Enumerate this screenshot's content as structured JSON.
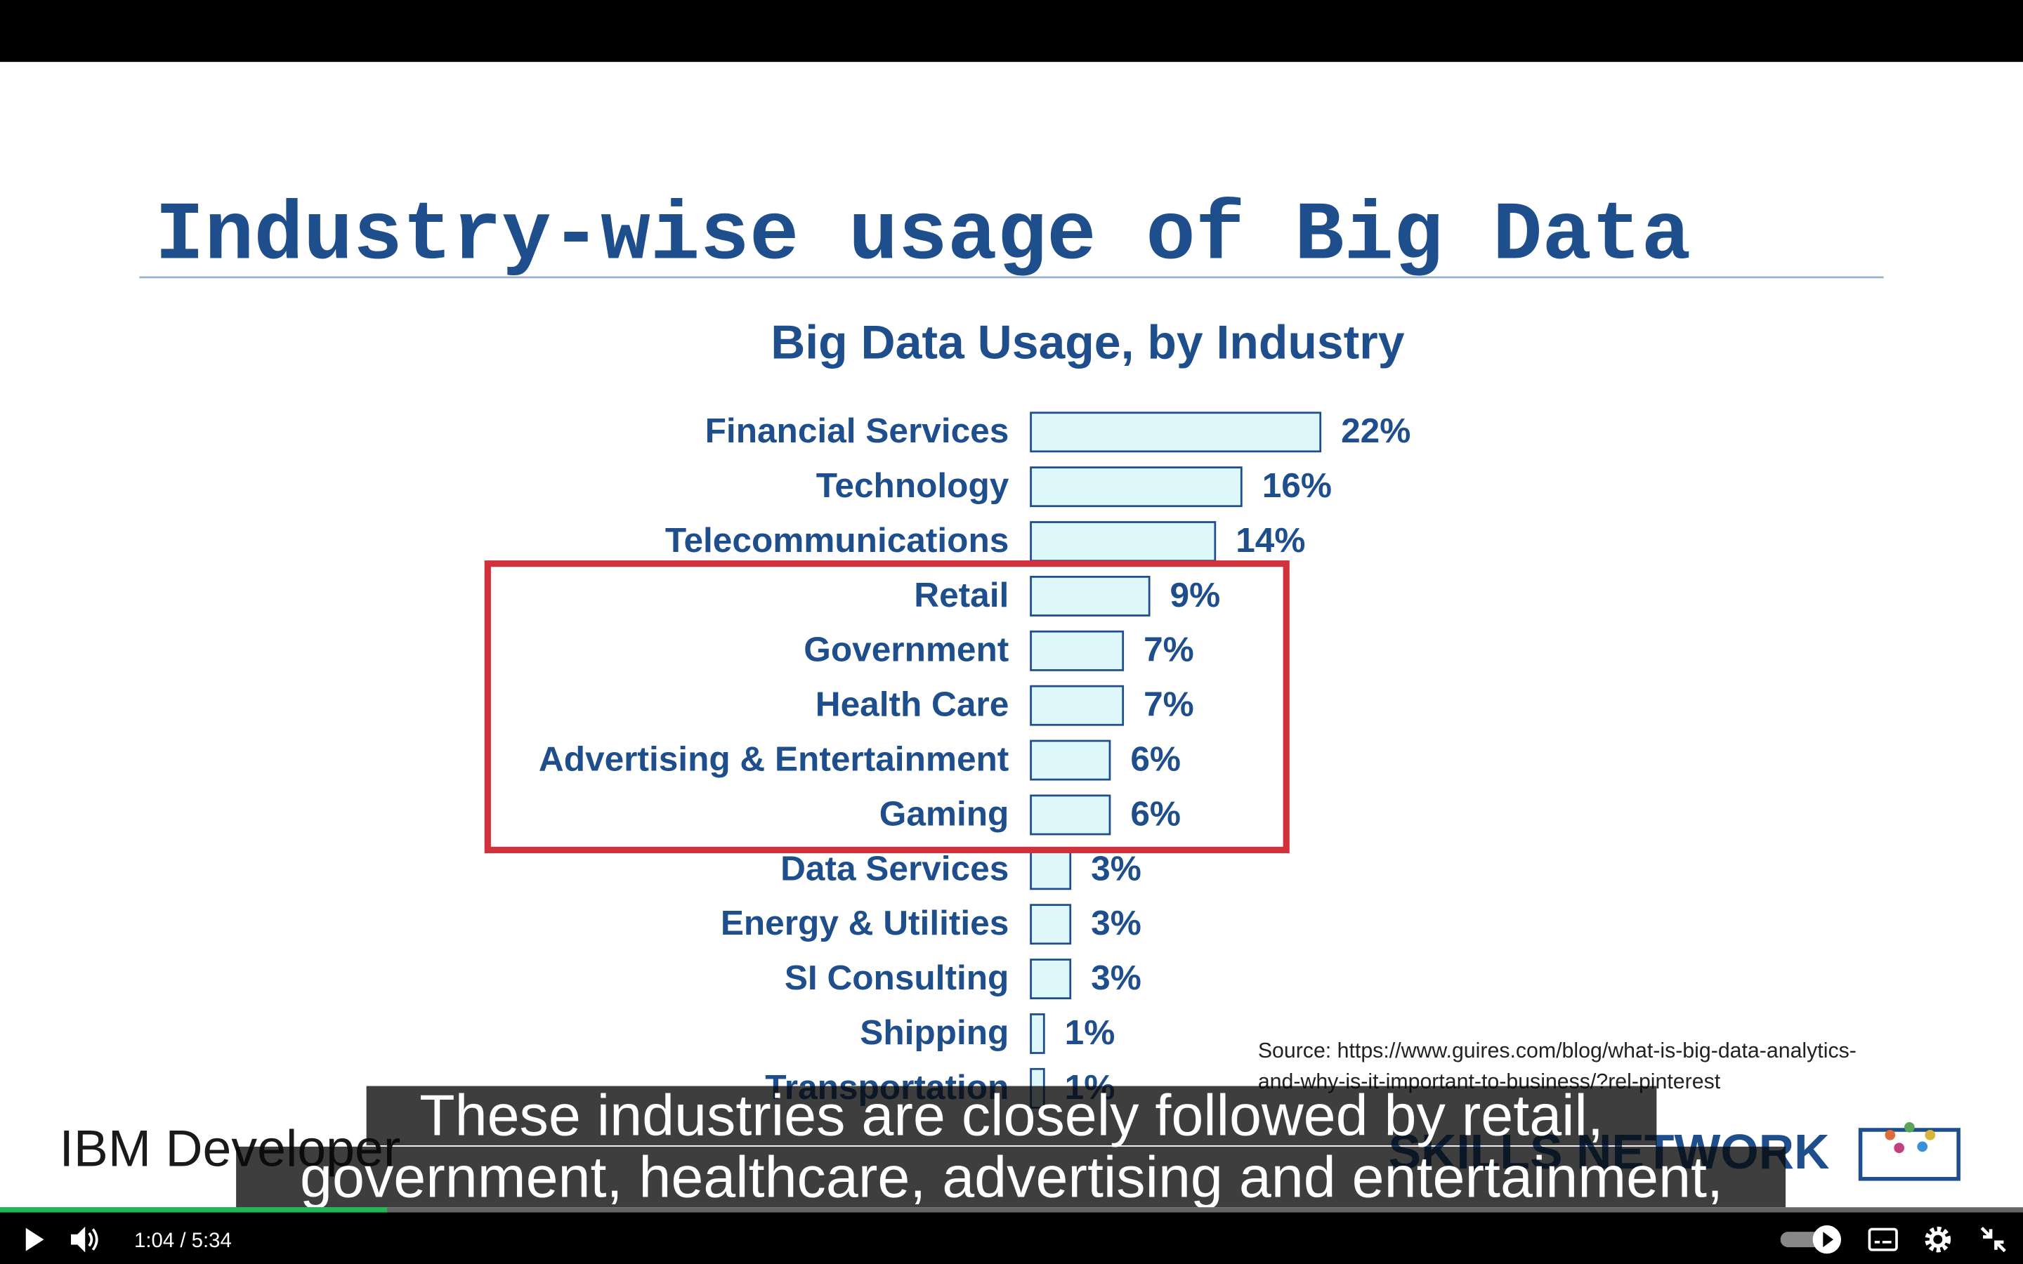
{
  "slide": {
    "title": "Industry-wise usage of Big Data",
    "source": [
      "Source: https://www.guires.com/blog/what-is-big-data-analytics-",
      "and-why-is-it-important-to-business/?rel-pinterest"
    ],
    "footer_left": "IBM Developer",
    "footer_right": "SKILLS NETWORK"
  },
  "chart_data": {
    "type": "bar",
    "orientation": "horizontal",
    "title": "Big Data Usage, by Industry",
    "categories": [
      "Financial Services",
      "Technology",
      "Telecommunications",
      "Retail",
      "Government",
      "Health Care",
      "Advertising & Entertainment",
      "Gaming",
      "Data Services",
      "Energy & Utilities",
      "SI Consulting",
      "Shipping",
      "Transportation"
    ],
    "values": [
      22,
      16,
      14,
      9,
      7,
      7,
      6,
      6,
      3,
      3,
      3,
      1,
      1
    ],
    "value_labels": [
      "22%",
      "16%",
      "14%",
      "9%",
      "7%",
      "7%",
      "6%",
      "6%",
      "3%",
      "3%",
      "3%",
      "1%",
      "1%"
    ],
    "color": "#ddf7fb",
    "edge_color": "#1f4e8c"
  },
  "captions": [
    "These industries are closely followed by retail,",
    "government, healthcare, advertising and entertainment,"
  ],
  "player": {
    "time": "1:04 / 5:34"
  }
}
